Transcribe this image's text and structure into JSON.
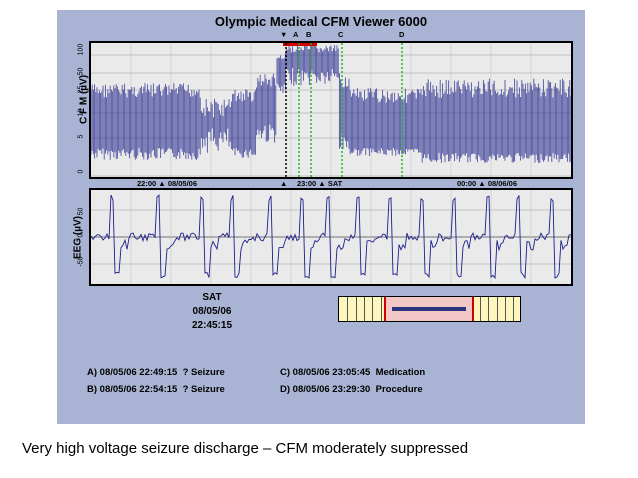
{
  "app": {
    "title": "Olympic Medical CFM Viewer 6000"
  },
  "cfm_panel": {
    "ylabel": "C F M (µV)",
    "yticks": [
      "100",
      "50",
      "25",
      "10",
      "5",
      "0"
    ],
    "time_labels": [
      {
        "time": "22:00",
        "date": "08/05/06"
      },
      {
        "time": "23:00",
        "date": "SAT"
      },
      {
        "time": "00:00",
        "date": "08/06/06"
      }
    ],
    "markers": [
      "A",
      "B",
      "C",
      "D"
    ]
  },
  "eeg_panel": {
    "ylabel": "EEG (µV)",
    "yticks": [
      "50",
      "0",
      "-50"
    ]
  },
  "cursor_time": {
    "day": "SAT",
    "date": "08/05/06",
    "time": "22:45:15"
  },
  "events": [
    {
      "id": "A",
      "label": "A)",
      "timestamp": "08/05/06 22:49:15",
      "description": "? Seizure"
    },
    {
      "id": "B",
      "label": "B)",
      "timestamp": "08/05/06 22:54:15",
      "description": "? Seizure"
    },
    {
      "id": "C",
      "label": "C)",
      "timestamp": "08/05/06 23:05:45",
      "description": "Medication"
    },
    {
      "id": "D",
      "label": "D)",
      "timestamp": "08/05/06 23:29:30",
      "description": "Procedure"
    }
  ],
  "colors": {
    "trace": "#1c1f8a",
    "cursor": "#000000",
    "marker": "#1fb51f",
    "window_bar": "#d00000",
    "background": "#a9b4d4"
  },
  "caption": "Very high voltage seizure discharge – CFM moderately suppressed"
}
